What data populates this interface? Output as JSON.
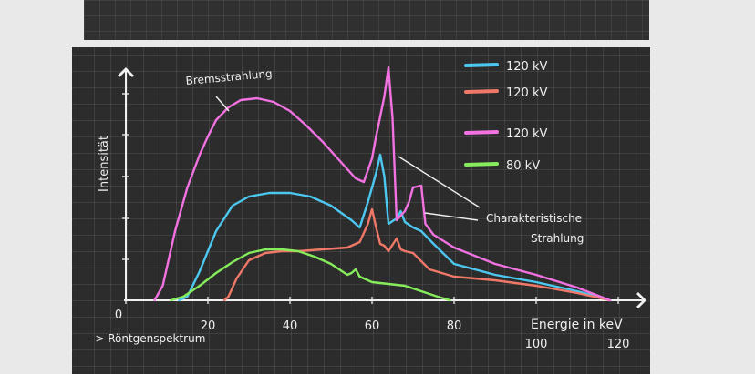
{
  "chart_data": {
    "type": "line",
    "title": "",
    "subtitle": "-> Röntgenspektrum",
    "xlabel": "Energie in keV",
    "ylabel": "Intensität",
    "xlim": [
      0,
      120
    ],
    "x_ticks": [
      {
        "value": 0,
        "label": "0"
      },
      {
        "value": 20,
        "label": "20"
      },
      {
        "value": 40,
        "label": "40"
      },
      {
        "value": 60,
        "label": "60"
      },
      {
        "value": 80,
        "label": "80"
      },
      {
        "value": 100,
        "label": "100"
      },
      {
        "value": 120,
        "label": "120"
      }
    ],
    "grid": true,
    "legend_position": "top-right",
    "annotations": {
      "bremsstrahlung": "Bremsstrahlung",
      "characteristic_line1": "Charakteristische",
      "characteristic_line2": "Strahlung"
    },
    "series": [
      {
        "name": "120 kV",
        "color": "#4cc8f0",
        "x": [
          13,
          15,
          18,
          22,
          26,
          30,
          35,
          40,
          45,
          50,
          55,
          57,
          59,
          61,
          62,
          63,
          64,
          66,
          67,
          68,
          70,
          72,
          75,
          80,
          90,
          100,
          110,
          118
        ],
        "y": [
          0,
          2,
          16,
          38,
          52,
          57,
          59,
          59,
          57,
          52,
          44,
          40,
          54,
          70,
          80,
          68,
          42,
          45,
          49,
          43,
          40,
          38,
          31,
          20,
          14,
          10,
          5,
          0
        ]
      },
      {
        "name": "120 kV",
        "color": "#f07868",
        "x": [
          24,
          25,
          27,
          30,
          34,
          38,
          42,
          48,
          54,
          57,
          59,
          60,
          61,
          62,
          63,
          64,
          66,
          67,
          68,
          70,
          74,
          80,
          90,
          100,
          110,
          118
        ],
        "y": [
          0,
          2,
          12,
          22,
          26,
          27,
          27,
          28,
          29,
          32,
          42,
          50,
          40,
          31,
          30,
          27,
          34,
          28,
          27,
          26,
          17,
          13,
          11,
          8,
          4,
          0
        ]
      },
      {
        "name": "120 kV",
        "color": "#f272e2",
        "x": [
          7,
          9,
          12,
          15,
          18,
          20,
          22,
          25,
          28,
          32,
          36,
          40,
          44,
          48,
          52,
          56,
          58,
          60,
          61,
          63,
          64,
          65,
          66,
          68,
          69,
          70,
          72,
          73,
          75,
          80,
          90,
          100,
          110,
          118
        ],
        "y": [
          0,
          8,
          38,
          62,
          80,
          90,
          99,
          106,
          110,
          111,
          109,
          104,
          96,
          87,
          77,
          67,
          65,
          78,
          90,
          112,
          128,
          100,
          44,
          49,
          54,
          62,
          63,
          42,
          36,
          29,
          20,
          14,
          7,
          0
        ]
      },
      {
        "name": "80 kV",
        "color": "#86ec5c",
        "x": [
          11,
          14,
          18,
          22,
          26,
          30,
          34,
          38,
          42,
          46,
          50,
          54,
          55,
          56,
          57,
          60,
          64,
          68,
          72,
          76,
          79
        ],
        "y": [
          0,
          2,
          8,
          15,
          21,
          26,
          28,
          28,
          27,
          24,
          20,
          14,
          15,
          17,
          13,
          10,
          9,
          8,
          5,
          2,
          0
        ]
      }
    ]
  }
}
